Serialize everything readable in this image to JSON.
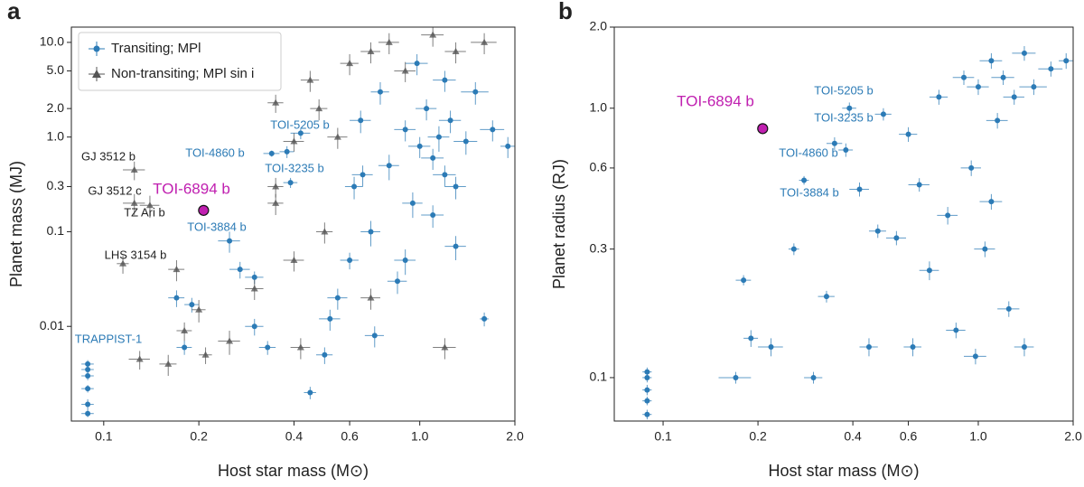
{
  "chart_data": [
    {
      "type": "scatter",
      "panel": "a",
      "xlabel": "Host star mass (M⊙)",
      "ylabel": "Planet mass (MJ)",
      "log_x": true,
      "log_y": true,
      "grid": false,
      "legend": "upper left",
      "xlim": [
        0.079,
        2.0
      ],
      "ylim": [
        0.001,
        14.5
      ],
      "xticks": [
        0.1,
        0.2,
        0.4,
        0.6,
        {
          "value": 1.0,
          "label": "1.0"
        },
        {
          "value": 2.0,
          "label": "2.0"
        }
      ],
      "yticks": [
        0.01,
        0.1,
        0.3,
        {
          "value": 1.0,
          "label": "1.0"
        },
        {
          "value": 2.0,
          "label": "2.0"
        },
        {
          "value": 5.0,
          "label": "5.0"
        },
        {
          "value": 10.0,
          "label": "10.0"
        }
      ],
      "series": [
        {
          "name": "Transiting; MPl",
          "color": "#2c7bb6",
          "marker": "circle",
          "x": [
            0.089,
            0.089,
            0.089,
            0.089,
            0.089,
            0.089,
            0.17,
            0.18,
            0.19,
            0.25,
            0.27,
            0.3,
            0.33,
            0.38,
            0.42,
            0.45,
            0.5,
            0.55,
            0.6,
            0.62,
            0.65,
            0.7,
            0.75,
            0.8,
            0.85,
            0.9,
            0.95,
            1.0,
            1.05,
            1.1,
            1.15,
            1.2,
            1.25,
            1.3,
            1.4,
            1.5,
            1.6,
            1.7,
            1.9,
            0.98,
            1.2,
            0.9,
            0.72,
            0.66,
            1.1,
            0.52,
            1.3,
            0.34,
            0.39,
            0.3
          ],
          "values": [
            0.004,
            0.0035,
            0.003,
            0.0022,
            0.0015,
            0.0012,
            0.02,
            0.006,
            0.017,
            0.08,
            0.04,
            0.01,
            0.006,
            0.7,
            1.1,
            0.002,
            0.005,
            0.02,
            0.05,
            0.3,
            1.5,
            0.1,
            3,
            0.5,
            0.03,
            1.2,
            0.2,
            0.8,
            2,
            0.6,
            1.0,
            0.4,
            1.5,
            0.07,
            0.9,
            3,
            0.012,
            1.2,
            0.8,
            6,
            4,
            0.05,
            0.008,
            0.4,
            0.15,
            0.012,
            0.3,
            0.67,
            0.33,
            0.033
          ],
          "xerr": [
            0.004,
            0.004,
            0.004,
            0.004,
            0.004,
            0.004,
            0.01,
            0.01,
            0.01,
            0.02,
            0.02,
            0.02,
            0.02,
            0.02,
            0.03,
            0.02,
            0.03,
            0.04,
            0.04,
            0.04,
            0.05,
            0.05,
            0.05,
            0.06,
            0.06,
            0.07,
            0.07,
            0.08,
            0.08,
            0.09,
            0.09,
            0.1,
            0.1,
            0.1,
            0.12,
            0.15,
            0.05,
            0.15,
            0.1,
            0.08,
            0.1,
            0.07,
            0.05,
            0.05,
            0.09,
            0.04,
            0.1,
            0.02,
            0.02,
            0.02
          ],
          "yerr": [
            0.0004,
            0.0003,
            0.0003,
            0.0002,
            0.0002,
            0.0001,
            0.004,
            0.001,
            0.003,
            0.02,
            0.008,
            0.002,
            0.001,
            0.1,
            0.15,
            0.0003,
            0.001,
            0.005,
            0.01,
            0.08,
            0.4,
            0.03,
            0.8,
            0.15,
            0.008,
            0.3,
            0.06,
            0.2,
            0.5,
            0.15,
            0.3,
            0.1,
            0.4,
            0.02,
            0.25,
            0.8,
            0.002,
            0.3,
            0.2,
            1.5,
            1,
            0.015,
            0.002,
            0.1,
            0.04,
            0.003,
            0.08,
            0.05,
            0.04,
            0.005
          ]
        },
        {
          "name": "Non-transiting; MPl sin i",
          "color": "#555555",
          "marker": "triangle",
          "x": [
            0.125,
            0.125,
            0.14,
            0.115,
            0.17,
            0.18,
            0.16,
            0.13,
            0.21,
            0.35,
            0.4,
            0.45,
            0.48,
            0.55,
            0.6,
            0.7,
            0.8,
            0.9,
            1.1,
            1.3,
            1.6,
            0.35,
            0.35,
            0.3,
            0.4,
            0.42,
            0.25,
            0.5,
            0.7,
            1.2,
            0.2
          ],
          "values": [
            0.45,
            0.2,
            0.19,
            0.046,
            0.04,
            0.009,
            0.004,
            0.0045,
            0.005,
            2.3,
            0.9,
            4,
            2,
            1,
            6,
            8,
            10,
            5,
            12,
            8,
            10,
            0.3,
            0.2,
            0.025,
            0.05,
            0.006,
            0.007,
            0.1,
            0.02,
            0.006,
            0.015
          ],
          "xerr": [
            0.01,
            0.01,
            0.01,
            0.005,
            0.01,
            0.01,
            0.01,
            0.01,
            0.01,
            0.02,
            0.03,
            0.03,
            0.03,
            0.04,
            0.04,
            0.05,
            0.06,
            0.07,
            0.09,
            0.1,
            0.15,
            0.02,
            0.02,
            0.02,
            0.03,
            0.03,
            0.02,
            0.03,
            0.05,
            0.1,
            0.01
          ],
          "yerr": [
            0.1,
            0.05,
            0.05,
            0.01,
            0.01,
            0.002,
            0.001,
            0.001,
            0.001,
            0.5,
            0.2,
            1,
            0.5,
            0.25,
            1.5,
            2,
            2.5,
            1.2,
            3,
            2,
            2.5,
            0.07,
            0.05,
            0.006,
            0.012,
            0.0015,
            0.002,
            0.025,
            0.005,
            0.0015,
            0.004
          ]
        }
      ],
      "highlight": {
        "label": "TOI-6894 b",
        "color": "#c020b0",
        "x": 0.207,
        "value": 0.168
      },
      "annotations": [
        "TOI-5205 b",
        "TOI-4860 b",
        "TOI-3235 b",
        "TOI-3884 b",
        "GJ 3512 b",
        "GJ 3512 c",
        "TZ Ari b",
        "LHS 3154 b",
        "TRAPPIST-1"
      ]
    },
    {
      "type": "scatter",
      "panel": "b",
      "xlabel": "Host star mass (M⊙)",
      "ylabel": "Planet radius (RJ)",
      "log_x": true,
      "log_y": true,
      "grid": false,
      "xlim": [
        0.07,
        2.0
      ],
      "ylim": [
        0.069,
        2.0
      ],
      "xticks": [
        0.1,
        0.2,
        0.4,
        0.6,
        {
          "value": 1.0,
          "label": "1.0"
        },
        {
          "value": 2.0,
          "label": "2.0"
        }
      ],
      "yticks": [
        0.1,
        0.3,
        0.6,
        {
          "value": 1.0,
          "label": "1.0"
        },
        {
          "value": 2.0,
          "label": "2.0"
        }
      ],
      "series": [
        {
          "name": "Transiting; MPl",
          "color": "#2c7bb6",
          "marker": "circle",
          "x": [
            0.089,
            0.089,
            0.089,
            0.089,
            0.089,
            0.18,
            0.17,
            0.19,
            0.22,
            0.26,
            0.28,
            0.3,
            0.33,
            0.35,
            0.38,
            0.39,
            0.42,
            0.45,
            0.5,
            0.55,
            0.6,
            0.62,
            0.65,
            0.7,
            0.75,
            0.8,
            0.85,
            0.9,
            0.95,
            1.0,
            1.05,
            1.1,
            1.15,
            1.2,
            1.3,
            1.4,
            1.5,
            1.7,
            1.9,
            1.25,
            0.98,
            1.4,
            1.1,
            0.48
          ],
          "values": [
            0.105,
            0.1,
            0.09,
            0.082,
            0.073,
            0.23,
            0.1,
            0.14,
            0.13,
            0.3,
            0.54,
            0.1,
            0.2,
            0.74,
            0.7,
            1.0,
            0.5,
            0.13,
            0.95,
            0.33,
            0.8,
            0.13,
            0.52,
            0.25,
            1.1,
            0.4,
            0.15,
            1.3,
            0.6,
            1.2,
            0.3,
            1.5,
            0.9,
            1.3,
            1.1,
            1.6,
            1.2,
            1.4,
            1.5,
            0.18,
            0.12,
            0.13,
            0.45,
            0.35
          ],
          "xerr": [
            0.003,
            0.003,
            0.003,
            0.003,
            0.003,
            0.01,
            0.02,
            0.01,
            0.02,
            0.01,
            0.01,
            0.02,
            0.02,
            0.02,
            0.02,
            0.02,
            0.03,
            0.03,
            0.03,
            0.04,
            0.04,
            0.04,
            0.05,
            0.05,
            0.05,
            0.06,
            0.06,
            0.07,
            0.07,
            0.08,
            0.08,
            0.09,
            0.09,
            0.1,
            0.1,
            0.12,
            0.15,
            0.15,
            0.1,
            0.1,
            0.08,
            0.1,
            0.09,
            0.03
          ],
          "yerr": [
            0.004,
            0.004,
            0.004,
            0.003,
            0.003,
            0.01,
            0.005,
            0.01,
            0.01,
            0.015,
            0.02,
            0.005,
            0.01,
            0.04,
            0.04,
            0.05,
            0.03,
            0.01,
            0.05,
            0.02,
            0.05,
            0.01,
            0.03,
            0.02,
            0.07,
            0.03,
            0.01,
            0.08,
            0.04,
            0.08,
            0.02,
            0.1,
            0.06,
            0.08,
            0.07,
            0.1,
            0.08,
            0.09,
            0.1,
            0.012,
            0.008,
            0.01,
            0.03,
            0.02
          ]
        }
      ],
      "highlight": {
        "label": "TOI-6894 b",
        "color": "#c020b0",
        "x": 0.207,
        "value": 0.84
      },
      "annotations": [
        "TOI-5205 b",
        "TOI-3235 b",
        "TOI-4860 b",
        "TOI-3884 b"
      ]
    }
  ]
}
